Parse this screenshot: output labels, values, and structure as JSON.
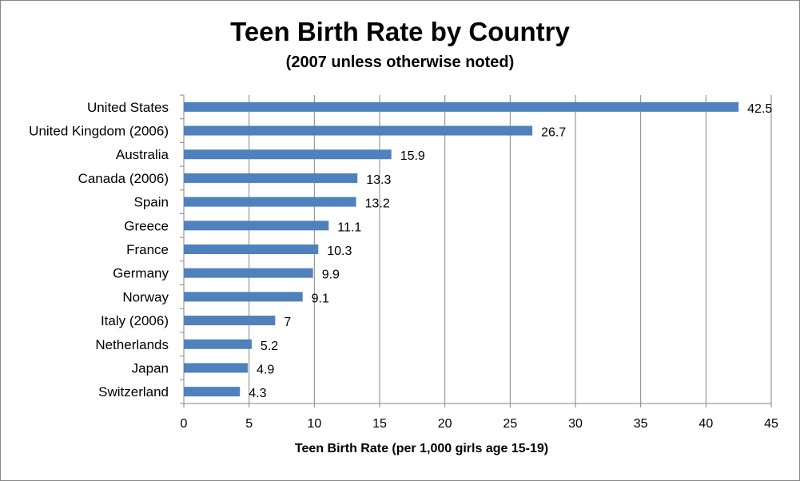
{
  "chart_data": {
    "type": "bar",
    "orientation": "horizontal",
    "title": "Teen Birth Rate by Country",
    "subtitle": "(2007 unless otherwise noted)",
    "xlabel": "Teen Birth Rate (per 1,000 girls age 15-19)",
    "ylabel": "",
    "categories": [
      "United States",
      "United Kingdom (2006)",
      "Australia",
      "Canada (2006)",
      "Spain",
      "Greece",
      "France",
      "Germany",
      "Norway",
      "Italy (2006)",
      "Netherlands",
      "Japan",
      "Switzerland"
    ],
    "values": [
      42.5,
      26.7,
      15.9,
      13.3,
      13.2,
      11.1,
      10.3,
      9.9,
      9.1,
      7,
      5.2,
      4.9,
      4.3
    ],
    "data_labels": [
      "42.5",
      "26.7",
      "15.9",
      "13.3",
      "13.2",
      "11.1",
      "10.3",
      "9.9",
      "9.1",
      "7",
      "5.2",
      "4.9",
      "4.3"
    ],
    "xlim": [
      0,
      45
    ],
    "xticks": [
      "0",
      "5",
      "10",
      "15",
      "20",
      "25",
      "30",
      "35",
      "40",
      "45"
    ],
    "grid": "vertical major gridlines",
    "legend": "none",
    "bar_color": "#4F81BD",
    "grid_color": "#868686"
  }
}
